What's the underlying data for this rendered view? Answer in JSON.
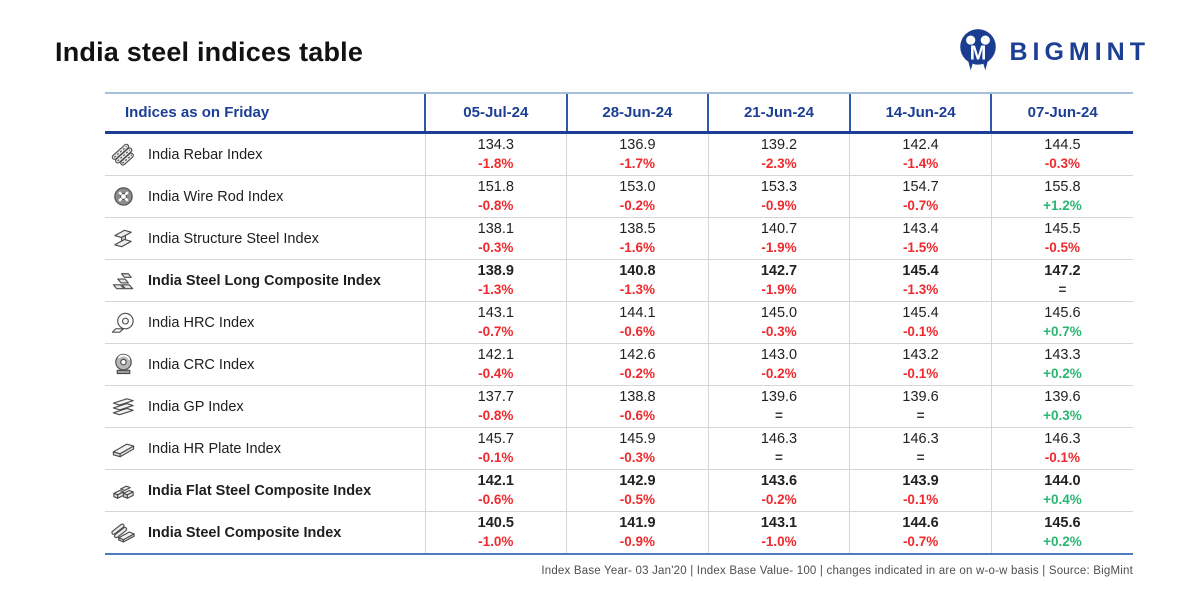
{
  "header": {
    "title": "India steel indices table",
    "logo_text": "BIGMINT"
  },
  "colors": {
    "navy": "#1c3e94",
    "red": "#ee2a2e",
    "green": "#2bb672",
    "flat": "#3a3a3a"
  },
  "chart_data": {
    "type": "table",
    "header_label": "Indices as on Friday",
    "columns": [
      "05-Jul-24",
      "28-Jun-24",
      "21-Jun-24",
      "14-Jun-24",
      "07-Jun-24"
    ],
    "rows": [
      {
        "icon": "rebar-icon",
        "label": "India Rebar Index",
        "bold": false,
        "cells": [
          {
            "value": "134.3",
            "change": "-1.8%"
          },
          {
            "value": "136.9",
            "change": "-1.7%"
          },
          {
            "value": "139.2",
            "change": "-2.3%"
          },
          {
            "value": "142.4",
            "change": "-1.4%"
          },
          {
            "value": "144.5",
            "change": "-0.3%"
          }
        ]
      },
      {
        "icon": "wire-rod-coil-icon",
        "label": "India Wire Rod Index",
        "bold": false,
        "cells": [
          {
            "value": "151.8",
            "change": "-0.8%"
          },
          {
            "value": "153.0",
            "change": "-0.2%"
          },
          {
            "value": "153.3",
            "change": "-0.9%"
          },
          {
            "value": "154.7",
            "change": "-0.7%"
          },
          {
            "value": "155.8",
            "change": "+1.2%"
          }
        ]
      },
      {
        "icon": "structure-steel-icon",
        "label": "India Structure Steel Index",
        "bold": false,
        "cells": [
          {
            "value": "138.1",
            "change": "-0.3%"
          },
          {
            "value": "138.5",
            "change": "-1.6%"
          },
          {
            "value": "140.7",
            "change": "-1.9%"
          },
          {
            "value": "143.4",
            "change": "-1.5%"
          },
          {
            "value": "145.5",
            "change": "-0.5%"
          }
        ]
      },
      {
        "icon": "long-steel-ingots-icon",
        "label": "India Steel Long Composite Index",
        "bold": true,
        "cells": [
          {
            "value": "138.9",
            "change": "-1.3%"
          },
          {
            "value": "140.8",
            "change": "-1.3%"
          },
          {
            "value": "142.7",
            "change": "-1.9%"
          },
          {
            "value": "145.4",
            "change": "-1.3%"
          },
          {
            "value": "147.2",
            "change": "="
          }
        ]
      },
      {
        "icon": "hrc-coil-icon",
        "label": "India HRC Index",
        "bold": false,
        "cells": [
          {
            "value": "143.1",
            "change": "-0.7%"
          },
          {
            "value": "144.1",
            "change": "-0.6%"
          },
          {
            "value": "145.0",
            "change": "-0.3%"
          },
          {
            "value": "145.4",
            "change": "-0.1%"
          },
          {
            "value": "145.6",
            "change": "+0.7%"
          }
        ]
      },
      {
        "icon": "crc-coil-icon",
        "label": "India CRC Index",
        "bold": false,
        "cells": [
          {
            "value": "142.1",
            "change": "-0.4%"
          },
          {
            "value": "142.6",
            "change": "-0.2%"
          },
          {
            "value": "143.0",
            "change": "-0.2%"
          },
          {
            "value": "143.2",
            "change": "-0.1%"
          },
          {
            "value": "143.3",
            "change": "+0.2%"
          }
        ]
      },
      {
        "icon": "gp-sheets-icon",
        "label": "India GP Index",
        "bold": false,
        "cells": [
          {
            "value": "137.7",
            "change": "-0.8%"
          },
          {
            "value": "138.8",
            "change": "-0.6%"
          },
          {
            "value": "139.6",
            "change": "="
          },
          {
            "value": "139.6",
            "change": "="
          },
          {
            "value": "139.6",
            "change": "+0.3%"
          }
        ]
      },
      {
        "icon": "hr-plate-icon",
        "label": "India HR Plate Index",
        "bold": false,
        "cells": [
          {
            "value": "145.7",
            "change": "-0.1%"
          },
          {
            "value": "145.9",
            "change": "-0.3%"
          },
          {
            "value": "146.3",
            "change": "="
          },
          {
            "value": "146.3",
            "change": "="
          },
          {
            "value": "146.3",
            "change": "-0.1%"
          }
        ]
      },
      {
        "icon": "flat-steel-ingots-icon",
        "label": "India Flat Steel Composite Index",
        "bold": true,
        "cells": [
          {
            "value": "142.1",
            "change": "-0.6%"
          },
          {
            "value": "142.9",
            "change": "-0.5%"
          },
          {
            "value": "143.6",
            "change": "-0.2%"
          },
          {
            "value": "143.9",
            "change": "-0.1%"
          },
          {
            "value": "144.0",
            "change": "+0.4%"
          }
        ]
      },
      {
        "icon": "steel-composite-icon",
        "label": "India Steel Composite Index",
        "bold": true,
        "cells": [
          {
            "value": "140.5",
            "change": "-1.0%"
          },
          {
            "value": "141.9",
            "change": "-0.9%"
          },
          {
            "value": "143.1",
            "change": "-1.0%"
          },
          {
            "value": "144.6",
            "change": "-0.7%"
          },
          {
            "value": "145.6",
            "change": "+0.2%"
          }
        ]
      }
    ]
  },
  "footer": {
    "note": "Index Base Year- 03 Jan'20 | Index Base Value- 100 | changes indicated in are on w-o-w basis | Source: BigMint"
  }
}
